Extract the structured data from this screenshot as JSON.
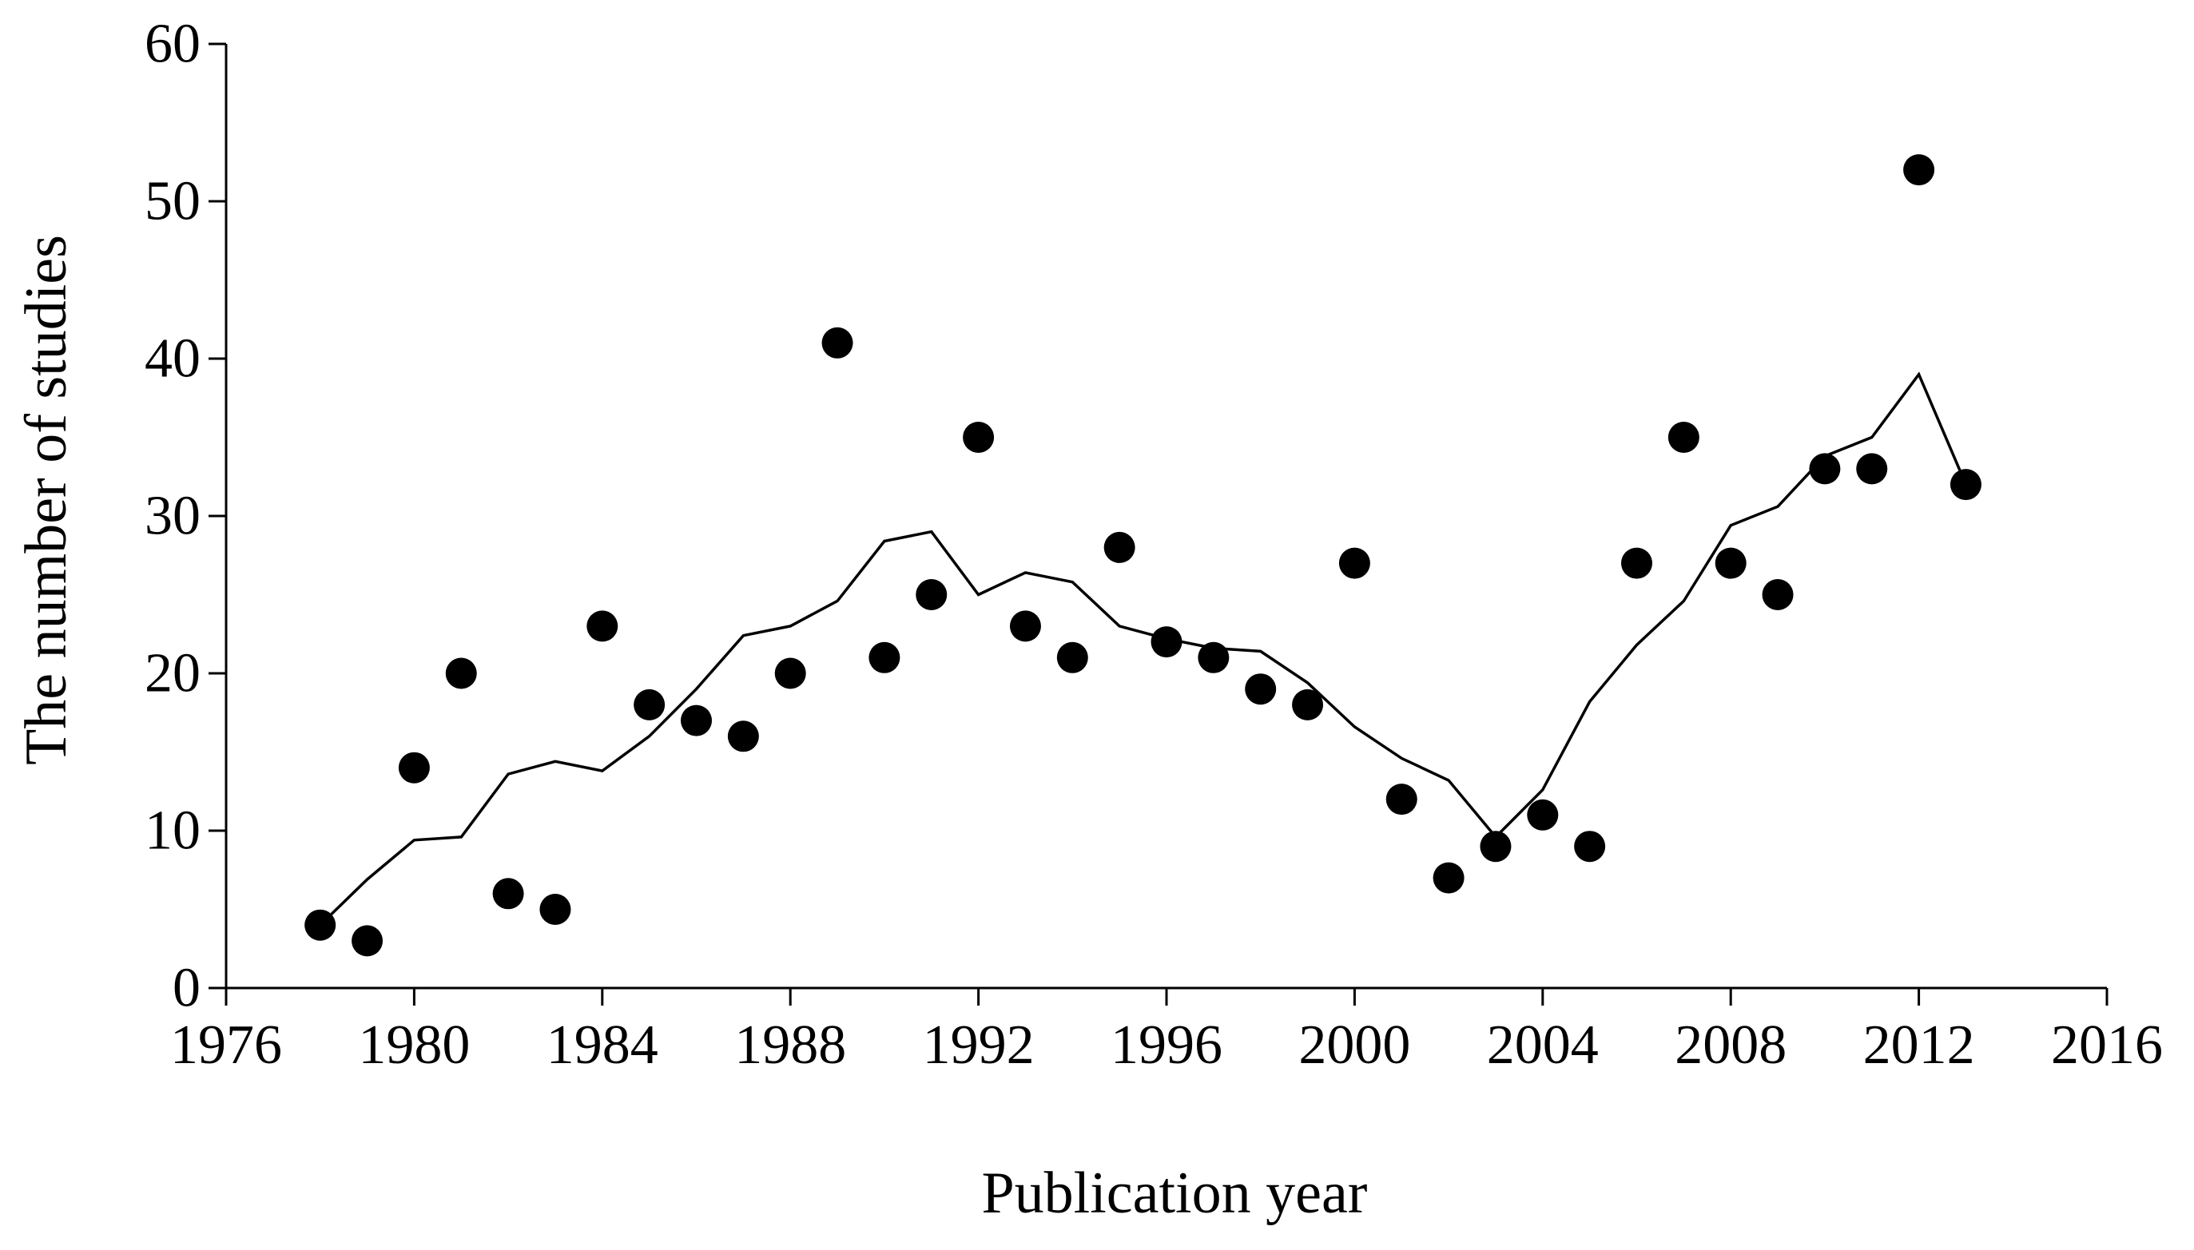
{
  "chart_data": {
    "type": "scatter",
    "title": "",
    "xlabel": "Publication year",
    "ylabel": "The number of studies",
    "xlim": [
      1976,
      2016
    ],
    "ylim": [
      0,
      60
    ],
    "xticks": [
      1976,
      1980,
      1984,
      1988,
      1992,
      1996,
      2000,
      2004,
      2008,
      2012,
      2016
    ],
    "yticks": [
      0,
      10,
      20,
      30,
      40,
      50,
      60
    ],
    "grid": false,
    "colors": {
      "points": "#000000",
      "line": "#000000",
      "axes": "#000000"
    },
    "series": [
      {
        "kind": "scatter",
        "x": [
          1978,
          1979,
          1980,
          1981,
          1982,
          1983,
          1984,
          1985,
          1986,
          1987,
          1988,
          1989,
          1990,
          1991,
          1992,
          1993,
          1994,
          1995,
          1996,
          1997,
          1998,
          1999,
          2000,
          2001,
          2002,
          2003,
          2004,
          2005,
          2006,
          2007,
          2008,
          2009,
          2010,
          2011,
          2012,
          2013
        ],
        "y": [
          4,
          3,
          14,
          20,
          6,
          5,
          23,
          18,
          17,
          16,
          20,
          41,
          21,
          25,
          35,
          23,
          21,
          28,
          22,
          21,
          19,
          18,
          27,
          12,
          7,
          9,
          11,
          9,
          27,
          35,
          27,
          25,
          33,
          33,
          52,
          32
        ]
      },
      {
        "kind": "line",
        "x": [
          1978,
          1979,
          1980,
          1981,
          1982,
          1983,
          1984,
          1985,
          1986,
          1987,
          1988,
          1989,
          1990,
          1991,
          1992,
          1993,
          1994,
          1995,
          1996,
          1997,
          1998,
          1999,
          2000,
          2001,
          2002,
          2003,
          2004,
          2005,
          2006,
          2007,
          2008,
          2009,
          2010,
          2011,
          2012,
          2013
        ],
        "y": [
          4,
          6.9,
          9.4,
          9.6,
          13.6,
          14.4,
          13.8,
          16,
          19,
          22.4,
          23,
          24.6,
          28.4,
          29,
          25,
          26.4,
          25.8,
          23,
          22.2,
          21.6,
          21.4,
          19.4,
          16.6,
          14.6,
          13.2,
          9.6,
          12.6,
          18.2,
          21.8,
          24.6,
          29.4,
          30.6,
          33.8,
          35,
          39,
          32
        ]
      }
    ]
  }
}
